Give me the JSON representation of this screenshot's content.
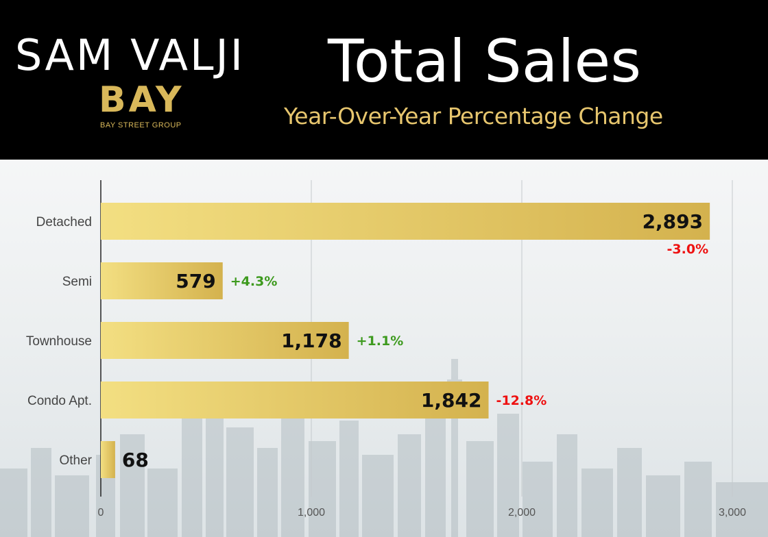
{
  "header": {
    "brand_name": "SAM VALJI",
    "logo_mark": "BAY",
    "logo_sub": "BAY STREET GROUP",
    "title": "Total Sales",
    "subtitle": "Year-Over-Year Percentage Change"
  },
  "colors": {
    "bar_light": "#f3df82",
    "bar_dark": "#d4b24e",
    "positive": "#3d9a1e",
    "negative": "#ee1111",
    "grid": "#c4c9cc"
  },
  "chart_data": {
    "type": "bar",
    "orientation": "horizontal",
    "categories": [
      "Detached",
      "Semi",
      "Townhouse",
      "Condo Apt.",
      "Other"
    ],
    "values": [
      2893,
      579,
      1178,
      1842,
      68
    ],
    "value_labels": [
      "2,893",
      "579",
      "1,178",
      "1,842",
      "68"
    ],
    "yoy_change": [
      "-3.0%",
      "+4.3%",
      "+1.1%",
      "-12.8%",
      ""
    ],
    "xlim": [
      0,
      3000
    ],
    "xticks": [
      0,
      1000,
      2000,
      3000
    ],
    "xtick_labels": [
      "0",
      "1,000",
      "2,000",
      "3,000"
    ],
    "grid": true,
    "title": "Total Sales",
    "subtitle": "Year-Over-Year Percentage Change"
  }
}
